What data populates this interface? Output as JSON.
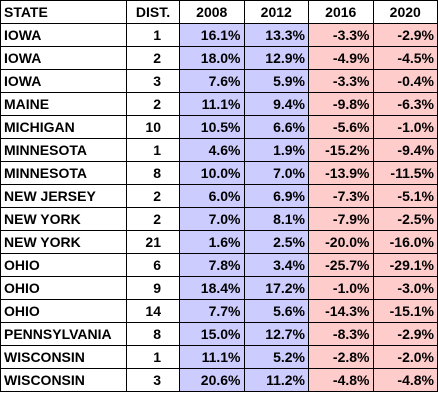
{
  "columns": [
    "STATE",
    "DIST.",
    "2008",
    "2012",
    "2016",
    "2020"
  ],
  "colors": {
    "dem_fill": "#ccccff",
    "rep_fill": "#ffcccc",
    "border": "#000000"
  },
  "rows": [
    [
      "IOWA",
      "1",
      "16.1%",
      "13.3%",
      "-3.3%",
      "-2.9%"
    ],
    [
      "IOWA",
      "2",
      "18.0%",
      "12.9%",
      "-4.9%",
      "-4.5%"
    ],
    [
      "IOWA",
      "3",
      "7.6%",
      "5.9%",
      "-3.3%",
      "-0.4%"
    ],
    [
      "MAINE",
      "2",
      "11.1%",
      "9.4%",
      "-9.8%",
      "-6.3%"
    ],
    [
      "MICHIGAN",
      "10",
      "10.5%",
      "6.6%",
      "-5.6%",
      "-1.0%"
    ],
    [
      "MINNESOTA",
      "1",
      "4.6%",
      "1.9%",
      "-15.2%",
      "-9.4%"
    ],
    [
      "MINNESOTA",
      "8",
      "10.0%",
      "7.0%",
      "-13.9%",
      "-11.5%"
    ],
    [
      "NEW JERSEY",
      "2",
      "6.0%",
      "6.9%",
      "-7.3%",
      "-5.1%"
    ],
    [
      "NEW YORK",
      "2",
      "7.0%",
      "8.1%",
      "-7.9%",
      "-2.5%"
    ],
    [
      "NEW YORK",
      "21",
      "1.6%",
      "2.5%",
      "-20.0%",
      "-16.0%"
    ],
    [
      "OHIO",
      "6",
      "7.8%",
      "3.4%",
      "-25.7%",
      "-29.1%"
    ],
    [
      "OHIO",
      "9",
      "18.4%",
      "17.2%",
      "-1.0%",
      "-3.0%"
    ],
    [
      "OHIO",
      "14",
      "7.7%",
      "5.6%",
      "-14.3%",
      "-15.1%"
    ],
    [
      "PENNSYLVANIA",
      "8",
      "15.0%",
      "12.7%",
      "-8.3%",
      "-2.9%"
    ],
    [
      "WISCONSIN",
      "1",
      "11.1%",
      "5.2%",
      "-2.8%",
      "-2.0%"
    ],
    [
      "WISCONSIN",
      "3",
      "20.6%",
      "11.2%",
      "-4.8%",
      "-4.8%"
    ]
  ]
}
